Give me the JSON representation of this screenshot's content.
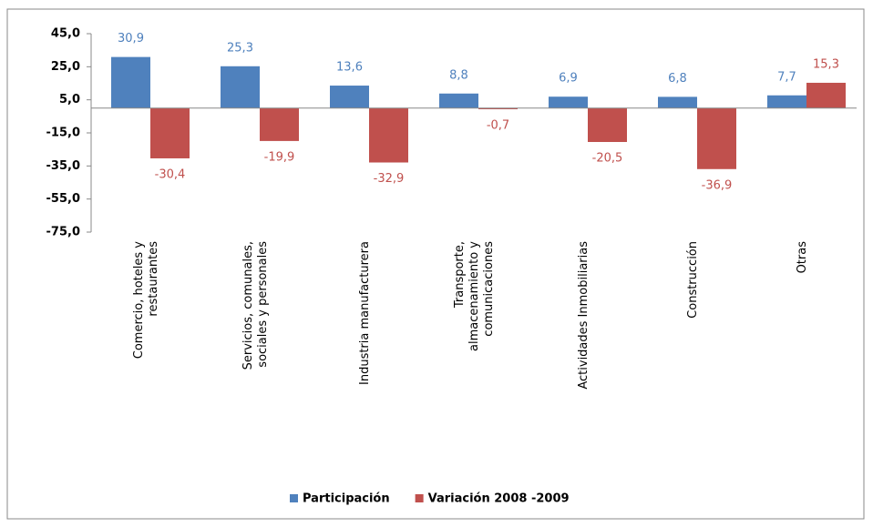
{
  "chart_data": {
    "type": "bar",
    "categories": [
      "Comercio, hoteles y restaurantes",
      "Servicios, comunales, sociales y personales",
      "Industria manufacturera",
      "Transporte, almacenamiento y comunicaciones",
      "Actividades Inmobiliarias",
      "Construcción",
      "Otras"
    ],
    "series": [
      {
        "name": "Participación",
        "color": "#4f81bd",
        "values": [
          30.9,
          25.3,
          13.6,
          8.8,
          6.9,
          6.8,
          7.7
        ],
        "value_labels": [
          "30,9",
          "25,3",
          "13,6",
          "8,8",
          "6,9",
          "6,8",
          "7,7"
        ]
      },
      {
        "name": "Variación 2008 -2009",
        "color": "#c0504d",
        "values": [
          -30.4,
          -19.9,
          -32.9,
          -0.7,
          -20.5,
          -36.9,
          15.3
        ],
        "value_labels": [
          "-30,4",
          "-19,9",
          "-32,9",
          "-0,7",
          "-20,5",
          "-36,9",
          "15,3"
        ]
      }
    ],
    "ylim": [
      -75,
      45
    ],
    "yticks": [
      {
        "value": 45,
        "label": "45,0"
      },
      {
        "value": 25,
        "label": "25,0"
      },
      {
        "value": 5,
        "label": "5,0"
      },
      {
        "value": -15,
        "label": "-15,0"
      },
      {
        "value": -35,
        "label": "-35,0"
      },
      {
        "value": -55,
        "label": "-55,0"
      },
      {
        "value": -75,
        "label": "-75,0"
      }
    ],
    "grid": false,
    "legend": "bottom"
  }
}
